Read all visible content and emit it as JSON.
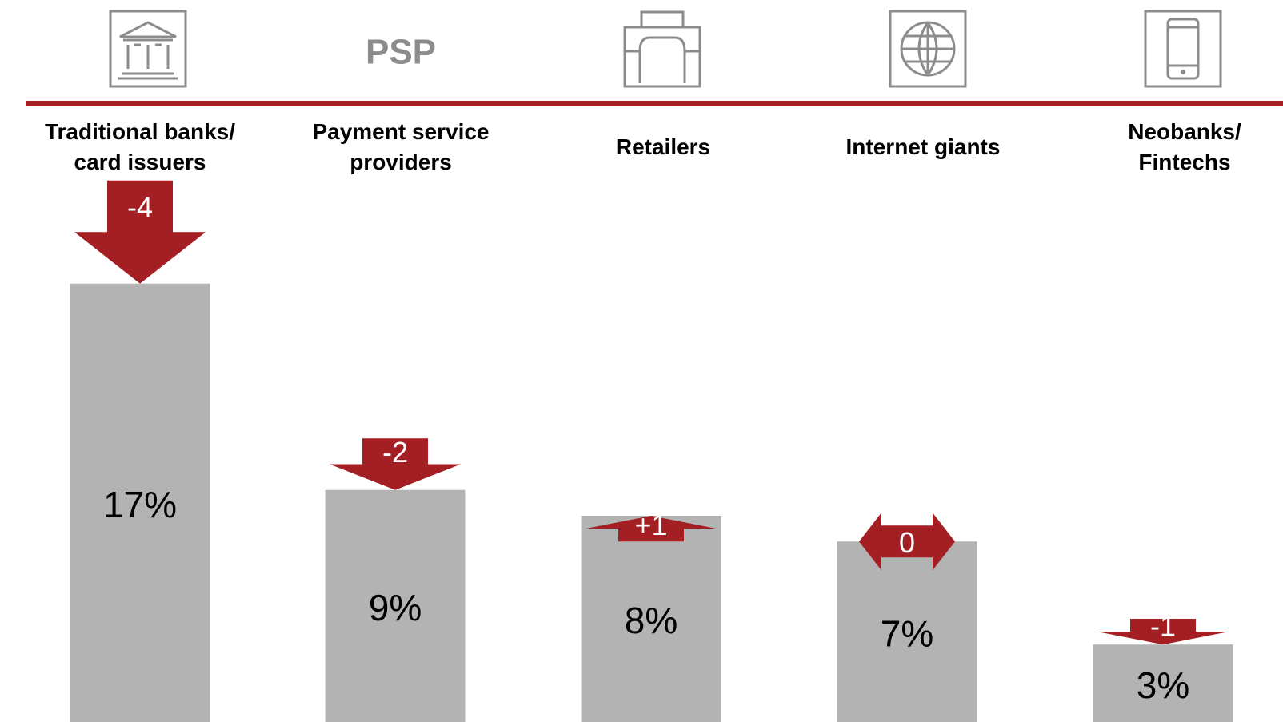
{
  "chart_data": {
    "type": "bar",
    "icon_text": "PSP",
    "categories": [
      "Traditional banks/\ncard issuers",
      "Payment service\nproviders",
      "Retailers",
      "Internet giants",
      "Neobanks/\nFintechs"
    ],
    "values": [
      17,
      9,
      8,
      7,
      3
    ],
    "value_labels": [
      "17%",
      "9%",
      "8%",
      "7%",
      "3%"
    ],
    "changes": [
      -4,
      -2,
      1,
      0,
      -1
    ],
    "change_labels": [
      "-4",
      "-2",
      "+1",
      "0",
      "-1"
    ],
    "color": "#b3b3b3",
    "change_color": "#a31f24",
    "ylim": [
      0,
      28
    ]
  }
}
